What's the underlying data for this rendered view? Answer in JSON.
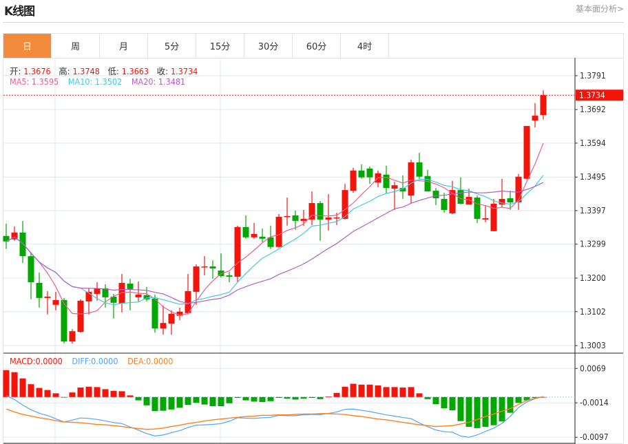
{
  "header": {
    "title": "K线图",
    "link": "基本面分析>"
  },
  "tabs": [
    {
      "label": "日",
      "active": true
    },
    {
      "label": "周"
    },
    {
      "label": "月"
    },
    {
      "label": "5分"
    },
    {
      "label": "15分"
    },
    {
      "label": "30分"
    },
    {
      "label": "60分"
    },
    {
      "label": "4时"
    }
  ],
  "ohlc_legend": {
    "open_label": "开:",
    "open": "1.3676",
    "high_label": "高:",
    "high": "1.3748",
    "low_label": "低:",
    "low": "1.3663",
    "close_label": "收:",
    "close": "1.3734"
  },
  "ma_legend": {
    "ma5": "MA5: 1.3595",
    "ma10": "MA10: 1.3502",
    "ma20": "MA20: 1.3481"
  },
  "macd_legend": {
    "macd": "MACD:0.0000",
    "diff": "DIFF:0.0000",
    "dea": "DEA:0.0000"
  },
  "colors": {
    "up": "#f5140a",
    "down": "#00a800",
    "ma5": "#ec5f8d",
    "ma10": "#3fcbe0",
    "ma20": "#b45ccb",
    "diff": "#4da6ff",
    "dea": "#ff7f1e",
    "active_tab": "#f28c3c"
  },
  "chart_data": [
    {
      "type": "candlestick",
      "ylim": [
        1.2983,
        1.3843
      ],
      "yticks": [
        "1.3791",
        "1.3692",
        "1.3594",
        "1.3495",
        "1.3397",
        "1.3299",
        "1.3200",
        "1.3102",
        "1.3003"
      ],
      "last_price": "1.3734",
      "grid": true,
      "ohlc": [
        [
          1.3323,
          1.3359,
          1.3285,
          1.3307
        ],
        [
          1.3313,
          1.3351,
          1.3309,
          1.3333
        ],
        [
          1.3333,
          1.3367,
          1.3244,
          1.3264
        ],
        [
          1.3264,
          1.3276,
          1.3138,
          1.3188
        ],
        [
          1.3186,
          1.3216,
          1.3114,
          1.3142
        ],
        [
          1.3142,
          1.3162,
          1.3094,
          1.3146
        ],
        [
          1.3122,
          1.316,
          1.3106,
          1.3136
        ],
        [
          1.3136,
          1.3142,
          1.3009,
          1.3015
        ],
        [
          1.3015,
          1.3051,
          1.3009,
          1.3045
        ],
        [
          1.3043,
          1.3138,
          1.3041,
          1.3134
        ],
        [
          1.3132,
          1.3172,
          1.3094,
          1.316
        ],
        [
          1.3154,
          1.3188,
          1.3134,
          1.317
        ],
        [
          1.317,
          1.3182,
          1.3114,
          1.3144
        ],
        [
          1.3146,
          1.3154,
          1.3082,
          1.3128
        ],
        [
          1.3126,
          1.3212,
          1.31,
          1.3186
        ],
        [
          1.3184,
          1.3198,
          1.3106,
          1.3168
        ],
        [
          1.3144,
          1.319,
          1.3132,
          1.3152
        ],
        [
          1.315,
          1.3174,
          1.3132,
          1.3138
        ],
        [
          1.314,
          1.3152,
          1.3041,
          1.3053
        ],
        [
          1.3053,
          1.312,
          1.3035,
          1.3069
        ],
        [
          1.3067,
          1.3106,
          1.3035,
          1.3096
        ],
        [
          1.309,
          1.3114,
          1.3077,
          1.3102
        ],
        [
          1.3098,
          1.3212,
          1.3094,
          1.3162
        ],
        [
          1.316,
          1.324,
          1.3122,
          1.3234
        ],
        [
          1.3232,
          1.3264,
          1.3208,
          1.3234
        ],
        [
          1.3234,
          1.3252,
          1.3198,
          1.3228
        ],
        [
          1.3222,
          1.3272,
          1.3202,
          1.3206
        ],
        [
          1.3208,
          1.3218,
          1.3188,
          1.3204
        ],
        [
          1.3204,
          1.3353,
          1.3188,
          1.3349
        ],
        [
          1.3349,
          1.3383,
          1.3315,
          1.3319
        ],
        [
          1.3319,
          1.3361,
          1.3315,
          1.3329
        ],
        [
          1.3321,
          1.3345,
          1.3305,
          1.3315
        ],
        [
          1.3319,
          1.3353,
          1.3285,
          1.3291
        ],
        [
          1.3291,
          1.3387,
          1.3289,
          1.3379
        ],
        [
          1.3379,
          1.3435,
          1.3353,
          1.3381
        ],
        [
          1.3383,
          1.3397,
          1.3341,
          1.3367
        ],
        [
          1.3367,
          1.3399,
          1.3353,
          1.3373
        ],
        [
          1.3371,
          1.3453,
          1.3355,
          1.3419
        ],
        [
          1.3419,
          1.3425,
          1.3309,
          1.3371
        ],
        [
          1.3371,
          1.3445,
          1.3339,
          1.3377
        ],
        [
          1.3375,
          1.3391,
          1.3355,
          1.3377
        ],
        [
          1.3373,
          1.3475,
          1.3371,
          1.3457
        ],
        [
          1.3455,
          1.3522,
          1.3449,
          1.3514
        ],
        [
          1.3514,
          1.3532,
          1.349,
          1.3494
        ],
        [
          1.352,
          1.3526,
          1.3475,
          1.3494
        ],
        [
          1.3479,
          1.3514,
          1.3465,
          1.3506
        ],
        [
          1.3502,
          1.3528,
          1.3447,
          1.3463
        ],
        [
          1.3461,
          1.3481,
          1.3399,
          1.3471
        ],
        [
          1.3463,
          1.35,
          1.3431,
          1.3453
        ],
        [
          1.3441,
          1.3546,
          1.3419,
          1.3538
        ],
        [
          1.3538,
          1.3566,
          1.349,
          1.3496
        ],
        [
          1.3498,
          1.3516,
          1.3453,
          1.3453
        ],
        [
          1.3455,
          1.3463,
          1.3413,
          1.3433
        ],
        [
          1.3431,
          1.3449,
          1.3391,
          1.3399
        ],
        [
          1.3389,
          1.3484,
          1.3387,
          1.3457
        ],
        [
          1.3457,
          1.3494,
          1.3415,
          1.3417
        ],
        [
          1.3415,
          1.3461,
          1.3415,
          1.3437
        ],
        [
          1.3435,
          1.3441,
          1.3361,
          1.3373
        ],
        [
          1.3371,
          1.3413,
          1.3363,
          1.3375
        ],
        [
          1.3337,
          1.3431,
          1.3337,
          1.3417
        ],
        [
          1.3415,
          1.349,
          1.3407,
          1.3431
        ],
        [
          1.3433,
          1.3455,
          1.3399,
          1.3421
        ],
        [
          1.3421,
          1.3504,
          1.3399,
          1.3496
        ],
        [
          1.349,
          1.3644,
          1.3488,
          1.3644
        ],
        [
          1.366,
          1.3711,
          1.364,
          1.3674
        ],
        [
          1.3676,
          1.3748,
          1.3663,
          1.3734
        ]
      ],
      "moving_averages": [
        5,
        10,
        20
      ]
    },
    {
      "type": "bar+line",
      "ylim": [
        -0.011,
        0.0106
      ],
      "yticks": [
        "0.0069",
        "-0.0014",
        "-0.0097"
      ],
      "macd": [
        0.0065,
        0.006,
        0.0045,
        0.0031,
        0.0022,
        0.0017,
        0.0009,
        0.0,
        0.0011,
        0.0023,
        0.0025,
        0.0024,
        0.0019,
        0.0015,
        0.0014,
        0.0004,
        -0.0008,
        -0.002,
        -0.0034,
        -0.0033,
        -0.003,
        -0.0026,
        -0.0019,
        -0.0014,
        -0.0018,
        -0.0022,
        -0.0022,
        -0.0015,
        -0.0002,
        -0.0008,
        -0.0011,
        -0.0012,
        -0.001,
        -0.0002,
        -0.0004,
        -0.0006,
        -0.0004,
        -0.0002,
        -0.0005,
        0.0001,
        0.001,
        0.0025,
        0.0032,
        0.003,
        0.003,
        0.0028,
        0.0024,
        0.0024,
        0.0023,
        0.0024,
        0.0009,
        -0.0005,
        -0.0017,
        -0.0027,
        -0.0032,
        -0.0058,
        -0.0072,
        -0.0075,
        -0.0072,
        -0.0068,
        -0.0059,
        -0.0038,
        -0.0014,
        -0.0008,
        -0.0002,
        0.0
      ],
      "dea": [
        -0.0029,
        -0.0036,
        -0.0042,
        -0.0046,
        -0.005,
        -0.0053,
        -0.0057,
        -0.006,
        -0.0061,
        -0.0062,
        -0.0064,
        -0.0066,
        -0.0067,
        -0.0069,
        -0.0071,
        -0.0074,
        -0.0076,
        -0.0078,
        -0.0077,
        -0.0075,
        -0.0071,
        -0.0068,
        -0.0064,
        -0.0061,
        -0.0058,
        -0.0055,
        -0.0053,
        -0.0051,
        -0.0049,
        -0.0047,
        -0.0046,
        -0.0044,
        -0.0044,
        -0.0043,
        -0.0043,
        -0.0042,
        -0.0041,
        -0.0041,
        -0.004,
        -0.004,
        -0.0041,
        -0.0042,
        -0.0045,
        -0.0047,
        -0.005,
        -0.0053,
        -0.0055,
        -0.0058,
        -0.0061,
        -0.0064,
        -0.0067,
        -0.0069,
        -0.0071,
        -0.007,
        -0.0069,
        -0.0065,
        -0.0061,
        -0.0054,
        -0.0047,
        -0.0041,
        -0.0034,
        -0.0028,
        -0.0018,
        -0.0008,
        -0.0003,
        0.0001
      ]
    }
  ]
}
